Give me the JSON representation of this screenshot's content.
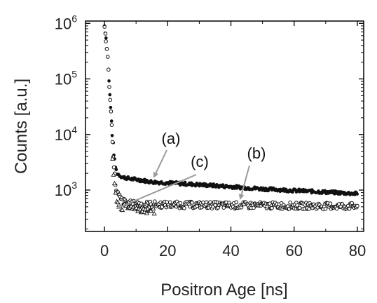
{
  "chart_data": {
    "type": "scatter",
    "xlabel": "Positron Age [ns]",
    "ylabel": "Counts [a.u.]",
    "xlim": [
      -6,
      82
    ],
    "ylim": [
      180,
      1100000
    ],
    "yscale": "log",
    "xticks": [
      {
        "value": 0,
        "label": "0"
      },
      {
        "value": 20,
        "label": "20"
      },
      {
        "value": 40,
        "label": "40"
      },
      {
        "value": 60,
        "label": "60"
      },
      {
        "value": 80,
        "label": "80"
      }
    ],
    "yticks": [
      {
        "value": 1000,
        "base": "10",
        "exp": "3"
      },
      {
        "value": 10000,
        "base": "10",
        "exp": "4"
      },
      {
        "value": 100000,
        "base": "10",
        "exp": "5"
      },
      {
        "value": 1000000,
        "base": "10",
        "exp": "6"
      }
    ],
    "series": [
      {
        "id": "a",
        "marker": "filled-circle",
        "color": "#111111",
        "x": [
          0,
          0.5,
          1,
          1.5,
          2,
          2.5,
          3,
          3.5,
          4,
          5,
          6,
          8,
          10,
          12,
          15,
          20,
          25,
          30,
          35,
          40,
          45,
          50,
          55,
          60,
          65,
          70,
          75,
          80
        ],
        "y": [
          900000,
          550000,
          250000,
          90000,
          30000,
          10000,
          4500,
          2600,
          2000,
          1800,
          1700,
          1600,
          1550,
          1500,
          1400,
          1350,
          1300,
          1250,
          1200,
          1150,
          1100,
          1050,
          1020,
          980,
          950,
          920,
          890,
          860
        ]
      },
      {
        "id": "b",
        "marker": "open-circle",
        "color": "#111111",
        "x": [
          0,
          0.5,
          1,
          1.5,
          2,
          2.5,
          3,
          3.5,
          4,
          5,
          6,
          8,
          10,
          12,
          15,
          20,
          25,
          30,
          35,
          40,
          45,
          50,
          55,
          60,
          65,
          70,
          75,
          80
        ],
        "y": [
          850000,
          520000,
          230000,
          80000,
          25000,
          8000,
          2500,
          1300,
          900,
          700,
          620,
          570,
          560,
          550,
          550,
          545,
          540,
          540,
          535,
          530,
          530,
          530,
          525,
          520,
          520,
          515,
          515,
          510
        ]
      },
      {
        "id": "c",
        "marker": "open-triangle",
        "color": "#111111",
        "x": [
          2.5,
          3,
          3.5,
          4,
          4.5,
          5,
          6,
          7,
          8,
          9,
          10,
          11,
          12,
          13,
          14,
          15,
          16
        ],
        "y": [
          3200,
          1500,
          900,
          650,
          550,
          500,
          480,
          500,
          470,
          520,
          480,
          440,
          460,
          430,
          420,
          440,
          410
        ]
      }
    ],
    "annotations": [
      {
        "text": "(a)",
        "target_series": "a"
      },
      {
        "text": "(c)",
        "target_series": "c"
      },
      {
        "text": "(b)",
        "target_series": "b"
      }
    ]
  }
}
